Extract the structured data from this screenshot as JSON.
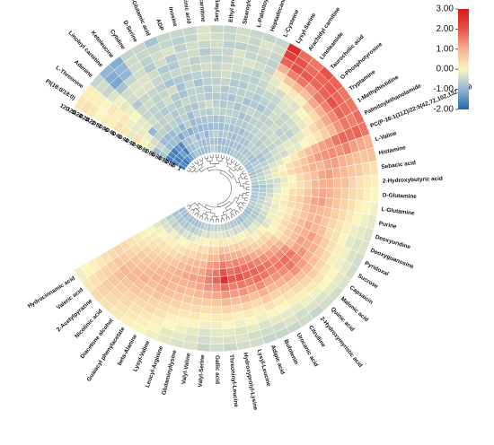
{
  "chart_data": {
    "type": "heatmap",
    "layout": "circular",
    "title": "",
    "samples": [
      "8D_1",
      "8D_2",
      "8D_3",
      "8D_4",
      "8D_5",
      "4D_1",
      "4D_2",
      "4D_3",
      "4D_4",
      "4D_5",
      "8D_5",
      "8D_6",
      "12D_1",
      "12D_2",
      "12D_3",
      "12D_4",
      "12D_5"
    ],
    "metabolites": [
      "PI(18:0/18:0)",
      "L-Threonine",
      "Adenine",
      "Linoleyl carnitine",
      "Ketoleucine",
      "Cytidine",
      "D-Serine",
      "L-Glutamic acid",
      "ADP",
      "Inosine",
      "Argininosuccinic acid",
      "Decanoylcarnitine",
      "Serylarginine",
      "Ethyl propyl disulfide",
      "Stearoylcarnitine",
      "L-Palmitoylcarnitine",
      "Heptadecanoyl carnitine",
      "L-Cysteine",
      "Lysyl-Serine",
      "Arachidyl carnitine",
      "Linoleamide",
      "Taurocholic acid",
      "O-Phosphotyrosine",
      "Tryptamine",
      "1-Methylhistidine",
      "Palmitoylethanolamide",
      "PC(P-16:1(11Z)/22:5(4Z,7Z,10Z,13Z,16Z))",
      "L-Valine",
      "Histamine",
      "Sebacic acid",
      "2-Hydroxybutyric acid",
      "D-Glutamine",
      "L-Glutamine",
      "Purine",
      "Deoxyuridine",
      "Deoxyguanosine",
      "Pyridoxal",
      "Sucrose",
      "Capsaicin",
      "Malonic acid",
      "Quinic acid",
      "2-Hydroxymyristic acid",
      "Citrulline",
      "Urocanic acid",
      "Bufotenin",
      "Adipic acid",
      "Lysyl-Leucine",
      "Hydroxyprolyl-Lysine",
      "Threoninyl-Leucine",
      "Gallic acid",
      "Valyl-Serine",
      "Valyl-Valine",
      "Glutaminyllysine",
      "Leucyl-Arginine",
      "Lysyl-Valine",
      "beta-Alanine",
      "Guaiacyl phenylacetate",
      "Diacetone alcohol",
      "Nicotinic acid",
      "2-Acetylpyrazine",
      "Valeric acid",
      "Hydrocinnamic acid"
    ],
    "color_scale": {
      "min": -2,
      "max": 3,
      "ticks": [
        "3.00",
        "2.00",
        "1.00",
        "0.00",
        "-1.00",
        "-2.00"
      ],
      "stops": [
        {
          "value": -2,
          "color": "#2166ac"
        },
        {
          "value": -1,
          "color": "#92b6d6"
        },
        {
          "value": 0,
          "color": "#fbf6c0"
        },
        {
          "value": 1,
          "color": "#f7b191"
        },
        {
          "value": 2,
          "color": "#e7514a"
        },
        {
          "value": 3,
          "color": "#d7191c"
        }
      ]
    },
    "values": [
      [
        -1.7,
        -1.6,
        -1.7,
        -0.8,
        -0.9,
        -0.2,
        0.0,
        0.3,
        -0.2,
        0.2,
        0.3,
        0.1,
        0.1,
        0.0,
        0.2,
        0.3,
        0.2
      ],
      [
        -1.6,
        -1.7,
        -1.6,
        -0.6,
        -0.5,
        -0.4,
        -0.1,
        -0.2,
        -0.2,
        -0.1,
        0.2,
        0.1,
        0.2,
        0.0,
        0.1,
        0.1,
        0.1
      ],
      [
        -1.8,
        -1.6,
        -1.7,
        -0.9,
        -0.9,
        -0.6,
        -1.0,
        -0.2,
        -0.2,
        0.0,
        -0.1,
        -0.2,
        -0.1,
        -0.3,
        -0.5,
        -0.4,
        -0.5
      ],
      [
        -1.5,
        -1.3,
        -1.4,
        -0.9,
        -0.9,
        -0.6,
        -0.5,
        -0.4,
        -0.5,
        -0.5,
        -0.7,
        -0.4,
        -0.4,
        -0.8,
        -1.2,
        -1.1,
        -1.0
      ],
      [
        -1.3,
        -1.7,
        -1.6,
        -0.9,
        -0.9,
        -0.7,
        -0.6,
        -0.6,
        -0.6,
        -0.4,
        -0.5,
        -0.3,
        -0.3,
        -0.5,
        -1.0,
        -1.0,
        -1.1
      ],
      [
        -1.0,
        -0.9,
        -0.8,
        -1.2,
        -0.7,
        -0.6,
        -0.5,
        -0.7,
        -0.6,
        -0.6,
        -0.5,
        -0.3,
        -0.3,
        -0.4,
        -0.4,
        -0.4,
        -0.5
      ],
      [
        -0.8,
        -0.9,
        -0.9,
        -0.9,
        -1.0,
        -0.7,
        -0.7,
        -0.6,
        -0.4,
        -0.5,
        -0.6,
        -0.5,
        -0.4,
        -0.7,
        -0.6,
        -0.5,
        -0.5
      ],
      [
        -0.9,
        -0.7,
        -0.6,
        -1.1,
        -0.6,
        -0.6,
        -0.6,
        -0.7,
        -0.7,
        -0.4,
        -0.8,
        -0.6,
        -0.7,
        -0.4,
        -0.4,
        -0.5,
        -0.8
      ],
      [
        -0.9,
        -0.8,
        -1.0,
        -0.9,
        -0.9,
        -0.9,
        -0.7,
        -0.5,
        -0.8,
        -0.8,
        -0.7,
        -0.5,
        -0.7,
        -0.7,
        -0.3,
        -0.5,
        -0.5
      ],
      [
        -0.9,
        -0.9,
        -0.7,
        -1.0,
        -0.8,
        -0.6,
        -0.8,
        -0.6,
        -0.6,
        -0.5,
        -0.7,
        -0.5,
        -0.4,
        -0.5,
        -0.6,
        -0.6,
        -0.5
      ],
      [
        -0.8,
        -0.8,
        -1.0,
        -0.9,
        -0.8,
        -0.6,
        -0.6,
        -0.6,
        -0.6,
        -0.8,
        -0.6,
        -0.5,
        -0.6,
        -0.4,
        -0.4,
        -0.5,
        -0.5
      ],
      [
        -0.6,
        -0.8,
        -0.7,
        -0.9,
        -0.7,
        -0.7,
        -0.4,
        -0.7,
        -0.7,
        -0.6,
        -0.6,
        -0.4,
        -0.5,
        -0.7,
        -0.5,
        -0.3,
        -0.3
      ],
      [
        -0.7,
        -0.8,
        -0.6,
        -0.8,
        -0.8,
        -0.5,
        -0.6,
        -0.7,
        -0.5,
        -0.6,
        -0.5,
        -0.5,
        -0.6,
        -0.5,
        -0.4,
        -0.4,
        -0.5
      ],
      [
        -0.9,
        -0.9,
        -0.8,
        -0.9,
        -0.8,
        -0.6,
        -0.7,
        -0.7,
        -0.7,
        -0.5,
        -0.4,
        -0.4,
        -0.5,
        -0.5,
        -0.6,
        -0.5,
        -0.5
      ],
      [
        -0.8,
        -0.9,
        -0.7,
        -0.8,
        -0.6,
        -0.6,
        -0.6,
        -0.8,
        -0.6,
        -0.7,
        -0.6,
        -0.4,
        -0.4,
        -0.3,
        -0.6,
        -0.4,
        -0.4
      ],
      [
        -0.9,
        -0.8,
        -0.8,
        -0.8,
        -0.7,
        -0.6,
        -0.8,
        -0.6,
        -0.6,
        -0.7,
        -0.6,
        -0.5,
        -0.3,
        -0.5,
        -0.5,
        -0.5,
        -0.5
      ],
      [
        -0.9,
        -0.9,
        -0.9,
        -0.8,
        -0.7,
        -0.8,
        -0.6,
        -0.8,
        -0.6,
        -0.5,
        -0.6,
        -0.6,
        -0.4,
        -0.5,
        -0.4,
        -0.3,
        -0.5
      ],
      [
        -0.8,
        -0.8,
        -0.7,
        -0.9,
        -0.7,
        -0.7,
        -0.5,
        -0.7,
        -0.7,
        -0.6,
        -0.5,
        -0.4,
        -0.5,
        -0.6,
        -0.5,
        -0.4,
        -0.5
      ],
      [
        -0.7,
        -0.9,
        -0.8,
        -0.7,
        -0.6,
        -0.6,
        -0.6,
        -0.8,
        -0.6,
        -0.5,
        -0.3,
        -0.2,
        0.3,
        1.0,
        1.8,
        2.3,
        2.6
      ],
      [
        -0.8,
        -0.7,
        -0.8,
        -0.7,
        -0.6,
        -0.6,
        -0.6,
        -0.6,
        -0.6,
        -0.5,
        -0.4,
        0.1,
        0.7,
        1.5,
        2.0,
        2.0,
        1.7
      ],
      [
        -0.7,
        -0.8,
        -0.6,
        -0.6,
        -0.5,
        -0.5,
        -0.6,
        -0.4,
        -0.4,
        -0.3,
        -0.2,
        0.2,
        0.9,
        1.6,
        1.9,
        1.7,
        1.6
      ],
      [
        -0.7,
        -0.7,
        -0.6,
        -0.7,
        -0.6,
        -0.5,
        -0.4,
        -0.5,
        -0.5,
        -0.3,
        -0.3,
        0.1,
        0.8,
        1.3,
        1.8,
        1.8,
        2.0
      ],
      [
        -0.6,
        -0.8,
        -0.6,
        -0.6,
        -0.5,
        -0.4,
        -0.6,
        -0.5,
        -0.4,
        -0.2,
        0.0,
        0.5,
        1.1,
        1.6,
        1.8,
        1.9,
        1.8
      ],
      [
        -0.8,
        -0.9,
        -0.8,
        -0.7,
        -0.6,
        -0.5,
        -0.5,
        -0.6,
        -0.4,
        -0.2,
        0.1,
        0.4,
        1.0,
        1.5,
        2.0,
        1.8,
        1.6
      ],
      [
        -0.9,
        -0.7,
        -0.8,
        -0.6,
        -0.4,
        -0.3,
        -0.2,
        -0.3,
        -0.2,
        0.1,
        0.4,
        0.7,
        1.1,
        1.4,
        1.8,
        1.7,
        1.6
      ],
      [
        -0.8,
        -0.6,
        -0.6,
        -0.5,
        -0.4,
        -0.4,
        -0.2,
        -0.2,
        0.0,
        0.1,
        0.3,
        0.6,
        0.9,
        1.3,
        1.6,
        1.5,
        1.7
      ],
      [
        -0.8,
        -0.7,
        -0.5,
        -0.3,
        -0.2,
        0.0,
        0.2,
        0.5,
        0.8,
        1.0,
        1.2,
        1.3,
        1.6,
        1.8,
        1.7,
        1.8,
        1.6
      ],
      [
        -0.7,
        -0.6,
        -0.4,
        -0.2,
        0.0,
        0.3,
        0.5,
        0.7,
        1.0,
        1.2,
        1.3,
        1.4,
        1.3,
        1.5,
        1.2,
        1.1,
        1.0
      ],
      [
        -0.6,
        -0.5,
        -0.3,
        -0.1,
        0.2,
        0.4,
        0.6,
        0.8,
        1.0,
        0.9,
        1.1,
        1.2,
        1.0,
        0.9,
        0.8,
        0.7,
        0.8
      ],
      [
        -0.7,
        -0.6,
        -0.5,
        -0.4,
        -0.2,
        0.0,
        0.4,
        0.6,
        0.8,
        1.1,
        1.2,
        1.0,
        0.9,
        0.7,
        0.6,
        0.4,
        0.3
      ],
      [
        -0.9,
        -0.8,
        -0.6,
        -0.3,
        -0.1,
        0.1,
        0.3,
        0.5,
        0.9,
        1.0,
        1.0,
        0.8,
        0.8,
        0.5,
        0.3,
        0.2,
        0.1
      ],
      [
        -0.8,
        -0.7,
        -0.5,
        -0.2,
        0.0,
        0.3,
        0.4,
        0.7,
        1.0,
        1.1,
        1.0,
        0.8,
        0.6,
        0.4,
        0.3,
        0.1,
        0.0
      ],
      [
        -0.7,
        -0.6,
        -0.4,
        -0.1,
        0.1,
        0.4,
        0.6,
        0.8,
        1.1,
        1.2,
        0.9,
        0.7,
        0.5,
        0.3,
        0.1,
        0.0,
        -0.1
      ],
      [
        -0.8,
        -0.6,
        -0.3,
        -0.1,
        0.2,
        0.4,
        0.5,
        0.8,
        1.0,
        0.9,
        0.8,
        0.6,
        0.4,
        0.2,
        0.0,
        -0.1,
        -0.2
      ],
      [
        -0.7,
        -0.5,
        -0.4,
        -0.2,
        0.0,
        0.2,
        0.5,
        0.7,
        0.9,
        1.0,
        0.7,
        0.5,
        0.3,
        0.1,
        -0.1,
        -0.2,
        -0.3
      ],
      [
        -0.6,
        -0.5,
        -0.3,
        -0.1,
        0.1,
        0.3,
        0.6,
        0.8,
        1.1,
        0.9,
        0.8,
        0.4,
        0.3,
        0.0,
        -0.2,
        -0.3,
        -0.3
      ],
      [
        -0.7,
        -0.6,
        -0.4,
        -0.1,
        0.1,
        0.4,
        0.6,
        0.9,
        1.0,
        1.2,
        0.9,
        0.6,
        0.3,
        0.1,
        -0.1,
        -0.3,
        -0.4
      ],
      [
        -0.8,
        -0.7,
        -0.5,
        -0.2,
        0.1,
        0.3,
        0.6,
        0.8,
        1.2,
        1.1,
        1.0,
        0.7,
        0.4,
        0.1,
        -0.1,
        -0.2,
        -0.4
      ],
      [
        -0.9,
        -0.7,
        -0.5,
        -0.3,
        0.0,
        0.2,
        0.5,
        0.8,
        1.1,
        1.3,
        1.0,
        0.8,
        0.5,
        0.2,
        0.0,
        -0.2,
        -0.3
      ],
      [
        -0.8,
        -0.6,
        -0.3,
        0.0,
        0.3,
        0.6,
        0.9,
        1.3,
        1.6,
        1.4,
        1.2,
        0.9,
        0.6,
        0.3,
        0.0,
        -0.2,
        -0.4
      ],
      [
        -0.7,
        -0.6,
        -0.2,
        0.2,
        0.5,
        0.8,
        1.1,
        1.4,
        1.7,
        1.6,
        1.3,
        0.8,
        0.5,
        0.2,
        -0.1,
        -0.3,
        -0.4
      ],
      [
        -0.9,
        -0.7,
        -0.3,
        0.1,
        0.4,
        0.8,
        1.2,
        1.5,
        1.6,
        1.4,
        1.1,
        0.7,
        0.4,
        0.1,
        -0.1,
        -0.3,
        -0.5
      ],
      [
        -0.8,
        -0.5,
        -0.1,
        0.3,
        0.6,
        1.0,
        1.4,
        1.6,
        1.5,
        1.3,
        1.0,
        0.6,
        0.3,
        0.1,
        -0.2,
        -0.4,
        -0.4
      ],
      [
        -0.7,
        -0.4,
        0.0,
        0.4,
        0.7,
        1.1,
        1.5,
        1.7,
        1.6,
        1.2,
        0.9,
        0.5,
        0.2,
        0.0,
        -0.2,
        -0.3,
        -0.5
      ],
      [
        -0.8,
        -0.5,
        0.1,
        0.5,
        0.9,
        1.3,
        1.6,
        1.8,
        1.7,
        1.4,
        1.0,
        0.6,
        0.3,
        0.0,
        -0.2,
        -0.4,
        -0.5
      ],
      [
        -0.6,
        -0.3,
        0.2,
        0.6,
        1.0,
        1.4,
        1.7,
        1.8,
        1.5,
        1.2,
        0.8,
        0.4,
        0.1,
        -0.1,
        -0.3,
        -0.4,
        -0.5
      ],
      [
        -0.7,
        -0.4,
        0.1,
        0.5,
        1.0,
        1.5,
        1.8,
        2.0,
        1.6,
        1.3,
        0.9,
        0.5,
        0.2,
        0.0,
        -0.2,
        -0.4,
        -0.4
      ],
      [
        -0.6,
        -0.3,
        0.2,
        0.7,
        1.1,
        1.4,
        1.7,
        1.9,
        1.5,
        1.2,
        0.8,
        0.4,
        0.1,
        -0.1,
        -0.3,
        -0.3,
        -0.4
      ],
      [
        -0.5,
        -0.2,
        0.3,
        0.8,
        1.2,
        1.6,
        2.0,
        2.6,
        1.7,
        1.3,
        0.9,
        0.5,
        0.2,
        0.0,
        -0.2,
        -0.3,
        -0.5
      ],
      [
        -0.6,
        -0.3,
        0.1,
        0.5,
        0.9,
        1.3,
        1.6,
        1.8,
        1.4,
        1.1,
        0.7,
        0.4,
        0.2,
        -0.1,
        -0.2,
        -0.3,
        -0.4
      ],
      [
        -0.5,
        -0.2,
        0.2,
        0.6,
        0.9,
        1.2,
        1.4,
        1.5,
        1.3,
        1.0,
        0.6,
        0.3,
        0.1,
        -0.1,
        -0.3,
        -0.4,
        -0.5
      ],
      [
        -0.7,
        -0.4,
        0.0,
        0.3,
        0.6,
        0.9,
        1.1,
        1.2,
        1.1,
        0.9,
        0.6,
        0.4,
        0.2,
        0.0,
        -0.2,
        -0.3,
        -0.3
      ],
      [
        -0.6,
        -0.3,
        0.1,
        0.4,
        0.7,
        0.9,
        1.0,
        1.2,
        1.0,
        0.8,
        0.6,
        0.4,
        0.2,
        0.0,
        -0.1,
        -0.2,
        -0.3
      ],
      [
        -0.7,
        -0.5,
        -0.1,
        0.2,
        0.5,
        0.8,
        1.0,
        1.1,
        1.0,
        0.9,
        0.7,
        0.5,
        0.3,
        0.1,
        0.0,
        -0.2,
        -0.2
      ],
      [
        -0.8,
        -0.6,
        -0.2,
        0.2,
        0.5,
        0.7,
        0.9,
        1.0,
        1.0,
        0.9,
        0.8,
        0.6,
        0.4,
        0.3,
        0.1,
        0.0,
        -0.1
      ],
      [
        -0.9,
        -0.7,
        -0.4,
        0.0,
        0.3,
        0.5,
        0.7,
        0.9,
        0.9,
        1.0,
        0.9,
        0.7,
        0.5,
        0.4,
        0.2,
        0.1,
        0.0
      ],
      [
        -0.8,
        -0.6,
        -0.3,
        0.0,
        0.2,
        0.4,
        0.6,
        0.8,
        0.9,
        1.0,
        0.8,
        0.7,
        0.6,
        0.4,
        0.3,
        0.2,
        0.1
      ],
      [
        -0.9,
        -0.8,
        -0.5,
        -0.2,
        0.1,
        0.3,
        0.5,
        0.7,
        0.8,
        0.9,
        1.0,
        0.8,
        0.7,
        0.5,
        0.4,
        0.3,
        0.2
      ],
      [
        -0.8,
        -0.7,
        -0.4,
        -0.1,
        0.1,
        0.3,
        0.4,
        0.6,
        0.7,
        0.8,
        0.9,
        0.9,
        0.7,
        0.6,
        0.5,
        0.4,
        0.3
      ],
      [
        -0.9,
        -0.8,
        -0.6,
        -0.3,
        0.0,
        0.2,
        0.3,
        0.5,
        0.6,
        0.7,
        0.8,
        0.9,
        0.8,
        0.7,
        0.6,
        0.5,
        0.4
      ],
      [
        -0.8,
        -0.7,
        -0.5,
        -0.3,
        -0.1,
        0.1,
        0.2,
        0.3,
        0.4,
        0.5,
        0.6,
        0.7,
        0.6,
        0.5,
        0.4,
        0.3,
        0.2
      ],
      [
        -0.9,
        -0.8,
        -0.6,
        -0.4,
        -0.2,
        0.0,
        0.1,
        0.2,
        0.3,
        0.4,
        0.5,
        0.4,
        0.3,
        0.2,
        0.1,
        0.0,
        -0.1
      ]
    ]
  }
}
